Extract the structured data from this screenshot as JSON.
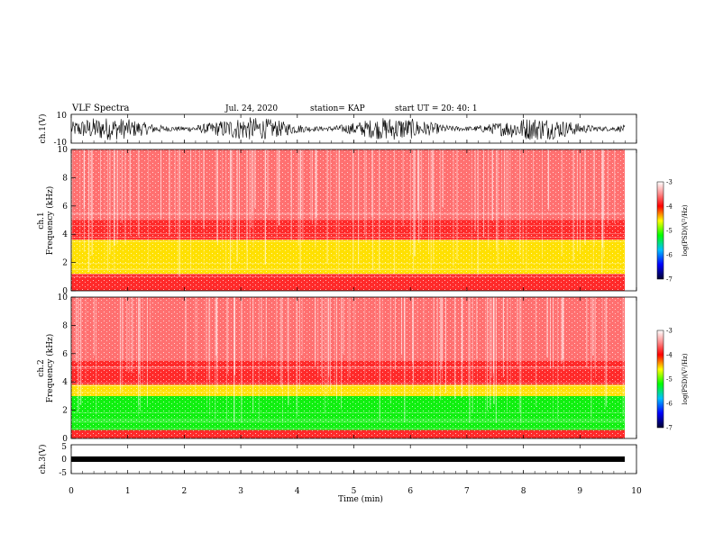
{
  "header": {
    "title": "VLF Spectra",
    "date": "Jul. 24, 2020",
    "station": "station= KAP",
    "start": "start UT = 20: 40: 1"
  },
  "colors": {
    "noise_red": "#ff3030",
    "band_yellow": "#ffe000",
    "band_green": "#10f010",
    "trace": "#000000"
  },
  "chart_data": [
    {
      "type": "line",
      "name": "ch1-waveform",
      "ylabel": "ch.1(V)",
      "ylim": [
        -10,
        10
      ],
      "yticks": [
        "10",
        "-10"
      ],
      "xlim": [
        0,
        10
      ],
      "description_level": "broadband noise roughly between -8 and 8 V"
    },
    {
      "type": "heatmap",
      "name": "ch1-spectrogram",
      "ylabel": "ch.1\nFrequency (kHz)",
      "ylim": [
        0,
        10
      ],
      "yticks": [
        "0",
        "2",
        "4",
        "6",
        "8",
        "10"
      ],
      "xlim": [
        0,
        9.8
      ],
      "bands": [
        {
          "from": 0,
          "to": 1.2,
          "color": "red"
        },
        {
          "from": 1.2,
          "to": 3.6,
          "color": "yellow"
        },
        {
          "from": 3.6,
          "to": 5.0,
          "color": "red"
        },
        {
          "from": 5.0,
          "to": 10,
          "color": "light-red"
        }
      ],
      "colorbar": {
        "label": "log(PSD)(V²/Hz)",
        "ticks": [
          "-3",
          "-4",
          "-5",
          "-6",
          "-7"
        ],
        "range": [
          -7,
          -3
        ]
      }
    },
    {
      "type": "heatmap",
      "name": "ch2-spectrogram",
      "ylabel": "ch.2\nFrequency (kHz)",
      "ylim": [
        0,
        10
      ],
      "yticks": [
        "0",
        "2",
        "4",
        "6",
        "8",
        "10"
      ],
      "xlim": [
        0,
        9.8
      ],
      "bands": [
        {
          "from": 0,
          "to": 0.6,
          "color": "red"
        },
        {
          "from": 0.6,
          "to": 3.0,
          "color": "green"
        },
        {
          "from": 3.0,
          "to": 3.8,
          "color": "yellow"
        },
        {
          "from": 3.8,
          "to": 5.5,
          "color": "red"
        },
        {
          "from": 5.5,
          "to": 10,
          "color": "light-red"
        }
      ],
      "colorbar": {
        "label": "log(PSD)(V²/Hz)",
        "ticks": [
          "-3",
          "-4",
          "-5",
          "-6",
          "-7"
        ],
        "range": [
          -7,
          -3
        ]
      }
    },
    {
      "type": "line",
      "name": "ch3-waveform",
      "ylabel": "ch.3(V)",
      "ylim": [
        -5,
        5
      ],
      "yticks": [
        "5",
        "0",
        "-5"
      ],
      "xlim": [
        0,
        10
      ],
      "description_level": "near constant around -1 V"
    }
  ],
  "xaxis": {
    "label": "Time (min)",
    "ticks": [
      "0",
      "1",
      "2",
      "3",
      "4",
      "5",
      "6",
      "7",
      "8",
      "9",
      "10"
    ]
  }
}
